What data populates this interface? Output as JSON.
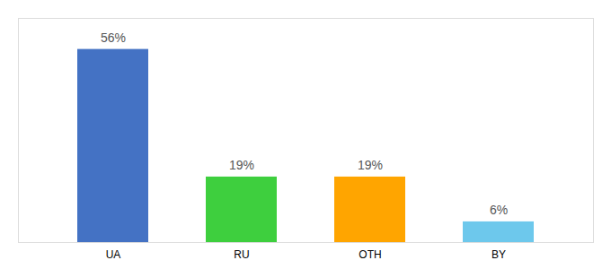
{
  "chart_data": {
    "type": "bar",
    "categories": [
      "UA",
      "RU",
      "OTH",
      "BY"
    ],
    "values": [
      56,
      19,
      19,
      6
    ],
    "value_labels": [
      "56%",
      "19%",
      "19%",
      "6%"
    ],
    "colors": [
      "#4472C4",
      "#3ECF3E",
      "#FFA500",
      "#6DC8EC"
    ],
    "ylim": [
      0,
      65
    ],
    "data_labels": true,
    "tick_labels": "x"
  }
}
